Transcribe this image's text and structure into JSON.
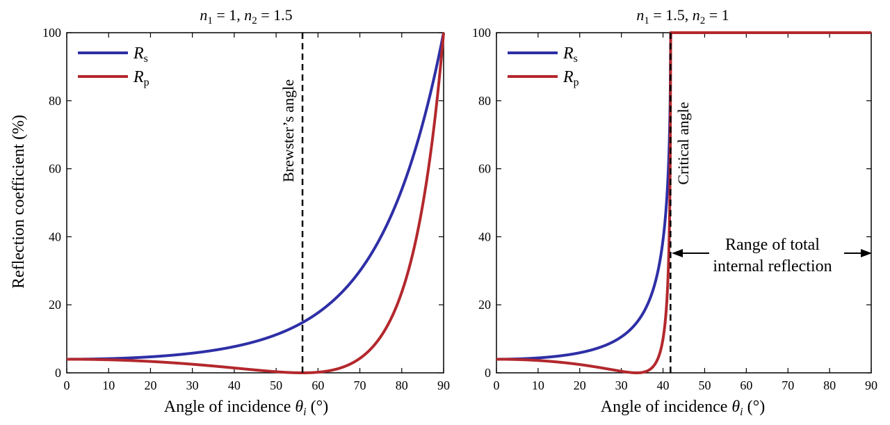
{
  "colors": {
    "rs": "#2e2fa6",
    "rp": "#b3282d",
    "axis": "#000000"
  },
  "shared_labels": {
    "ylabel": "Reflection coefficient (%)",
    "xlabel_text": "Angle of incidence ",
    "xlabel_symbol": "θ",
    "xlabel_subscript": "i",
    "xlabel_unit": " (°)"
  },
  "chart_data": [
    {
      "type": "line",
      "title": {
        "n1_value": "1",
        "n2_value": "1.5"
      },
      "xlim": [
        0,
        90
      ],
      "ylim": [
        0,
        100
      ],
      "xticks": [
        0,
        10,
        20,
        30,
        40,
        50,
        60,
        70,
        80,
        90
      ],
      "yticks": [
        0,
        20,
        40,
        60,
        80,
        100
      ],
      "n1": 1,
      "n2": 1.5,
      "legend": {
        "placement": "top-left",
        "entries": [
          {
            "symbol": "R",
            "sub": "s",
            "series": "Rs"
          },
          {
            "symbol": "R",
            "sub": "p",
            "series": "Rp"
          }
        ]
      },
      "series": [
        {
          "name": "Rs",
          "x": [
            0,
            10,
            20,
            30,
            40,
            50,
            56.3,
            60,
            70,
            80,
            85,
            90
          ],
          "y": [
            4.0,
            4.2,
            4.9,
            5.8,
            7.9,
            11.3,
            14.8,
            17.7,
            30.1,
            54.4,
            72.9,
            100
          ]
        },
        {
          "name": "Rp",
          "x": [
            0,
            10,
            20,
            30,
            40,
            50,
            56.3,
            60,
            70,
            80,
            85,
            90
          ],
          "y": [
            4.0,
            3.8,
            3.4,
            2.5,
            1.4,
            0.2,
            0.0,
            0.1,
            3.9,
            21.6,
            45.0,
            100
          ]
        }
      ],
      "annotation": {
        "label": "Brewster’s angle",
        "x": 56.3
      }
    },
    {
      "type": "line",
      "title": {
        "n1_value": "1.5",
        "n2_value": "1"
      },
      "xlim": [
        0,
        90
      ],
      "ylim": [
        0,
        100
      ],
      "xticks": [
        0,
        10,
        20,
        30,
        40,
        50,
        60,
        70,
        80,
        90
      ],
      "yticks": [
        0,
        20,
        40,
        60,
        80,
        100
      ],
      "n1": 1.5,
      "n2": 1,
      "legend": {
        "placement": "top-left",
        "entries": [
          {
            "symbol": "R",
            "sub": "s",
            "series": "Rs"
          },
          {
            "symbol": "R",
            "sub": "p",
            "series": "Rp"
          }
        ]
      },
      "series": [
        {
          "name": "Rs",
          "x": [
            0,
            10,
            20,
            30,
            35,
            40,
            41.8,
            90
          ],
          "y": [
            4.0,
            4.5,
            6.1,
            10.8,
            17.4,
            38.8,
            100,
            100
          ]
        },
        {
          "name": "Rp",
          "x": [
            0,
            10,
            20,
            30,
            33.7,
            35,
            38,
            40,
            41.8,
            90
          ],
          "y": [
            4.0,
            3.4,
            2.0,
            0.3,
            0.0,
            0.2,
            3.3,
            17.0,
            100,
            100
          ]
        }
      ],
      "annotation": {
        "label": "Critical angle",
        "x": 41.8,
        "range_line1": "Range of total",
        "range_line2": "internal reflection"
      }
    }
  ]
}
